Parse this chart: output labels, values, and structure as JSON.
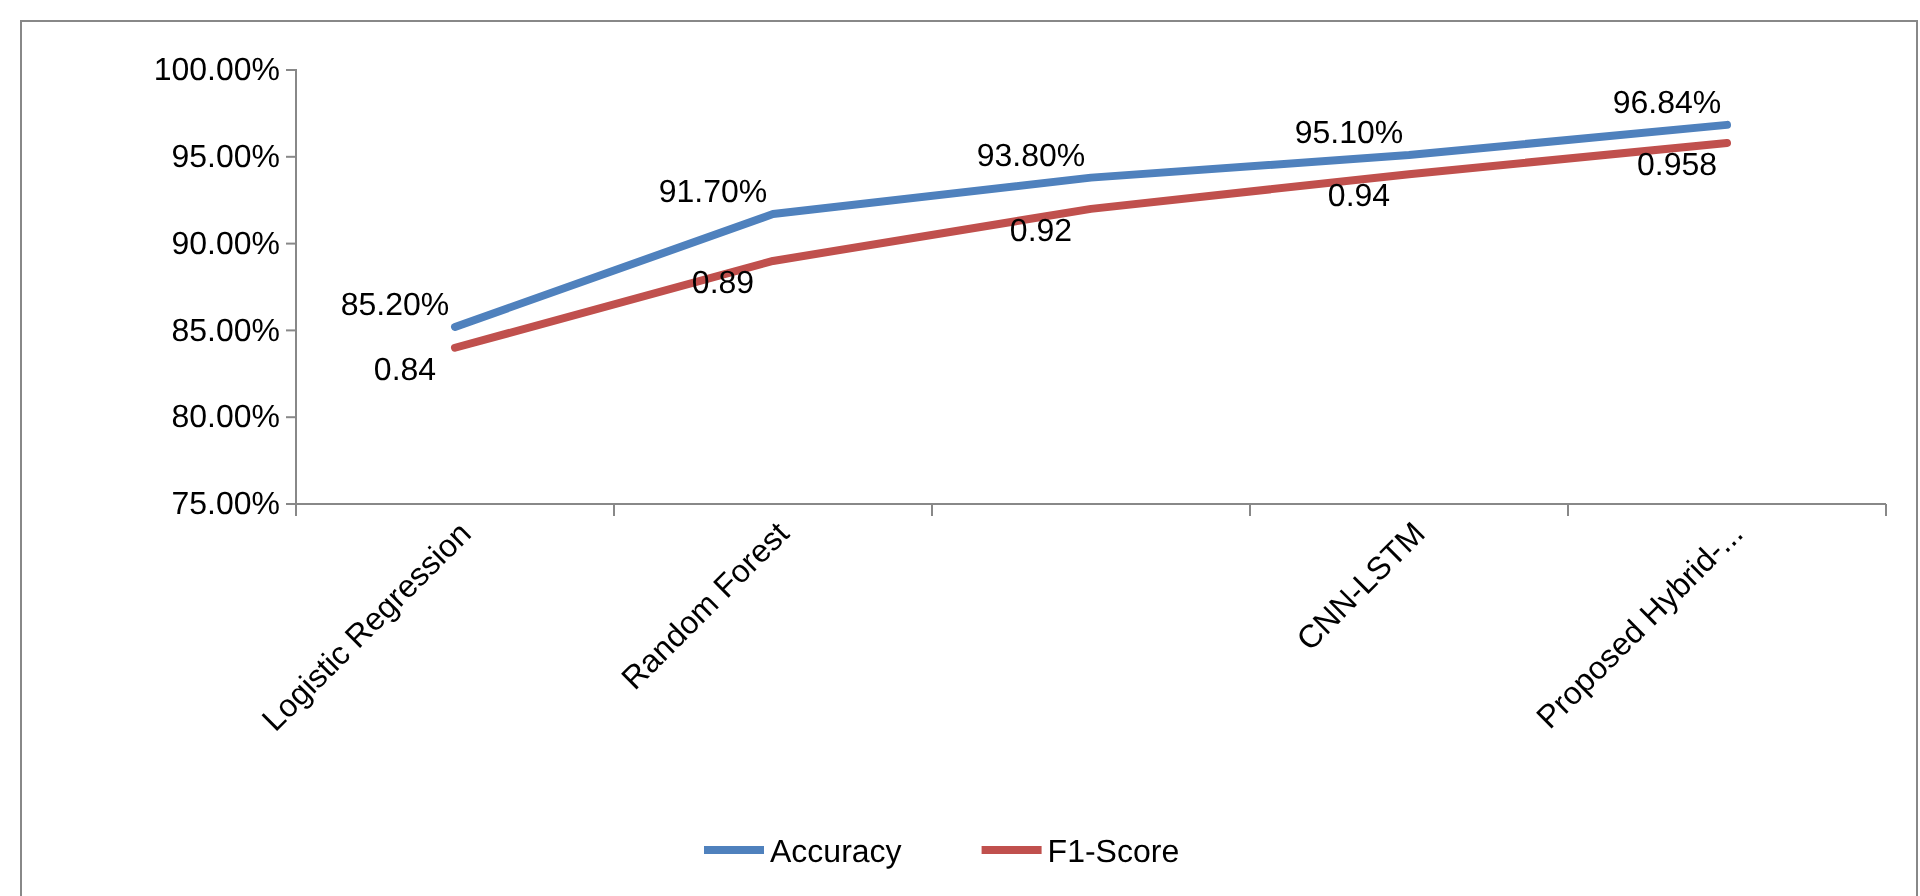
{
  "chart_data": {
    "type": "line",
    "categories": [
      "Logistic Regression",
      "Random Forest",
      null,
      "CNN-LSTM",
      "Proposed Hybrid-..."
    ],
    "series": [
      {
        "name": "Accuracy",
        "color": "#4f81bd",
        "values": [
          0.852,
          0.917,
          0.938,
          0.951,
          0.9684
        ],
        "value_labels": [
          "85.20%",
          "91.70%",
          "93.80%",
          "95.10%",
          "96.84%"
        ]
      },
      {
        "name": "F1-Score",
        "color": "#c0504d",
        "values": [
          0.84,
          0.89,
          0.92,
          0.94,
          0.958
        ],
        "value_labels": [
          "0.84",
          "0.89",
          "0.92",
          "0.94",
          "0.958"
        ]
      }
    ],
    "ylim": [
      0.75,
      1.0
    ],
    "yticks": [
      {
        "value": 0.75,
        "label": "75.00%"
      },
      {
        "value": 0.8,
        "label": "80.00%"
      },
      {
        "value": 0.85,
        "label": "85.00%"
      },
      {
        "value": 0.9,
        "label": "90.00%"
      },
      {
        "value": 0.95,
        "label": "95.00%"
      },
      {
        "value": 1.0,
        "label": "100.00%"
      }
    ],
    "grid": false,
    "legend": "bottom",
    "marker": "none",
    "line_style": "solid"
  }
}
